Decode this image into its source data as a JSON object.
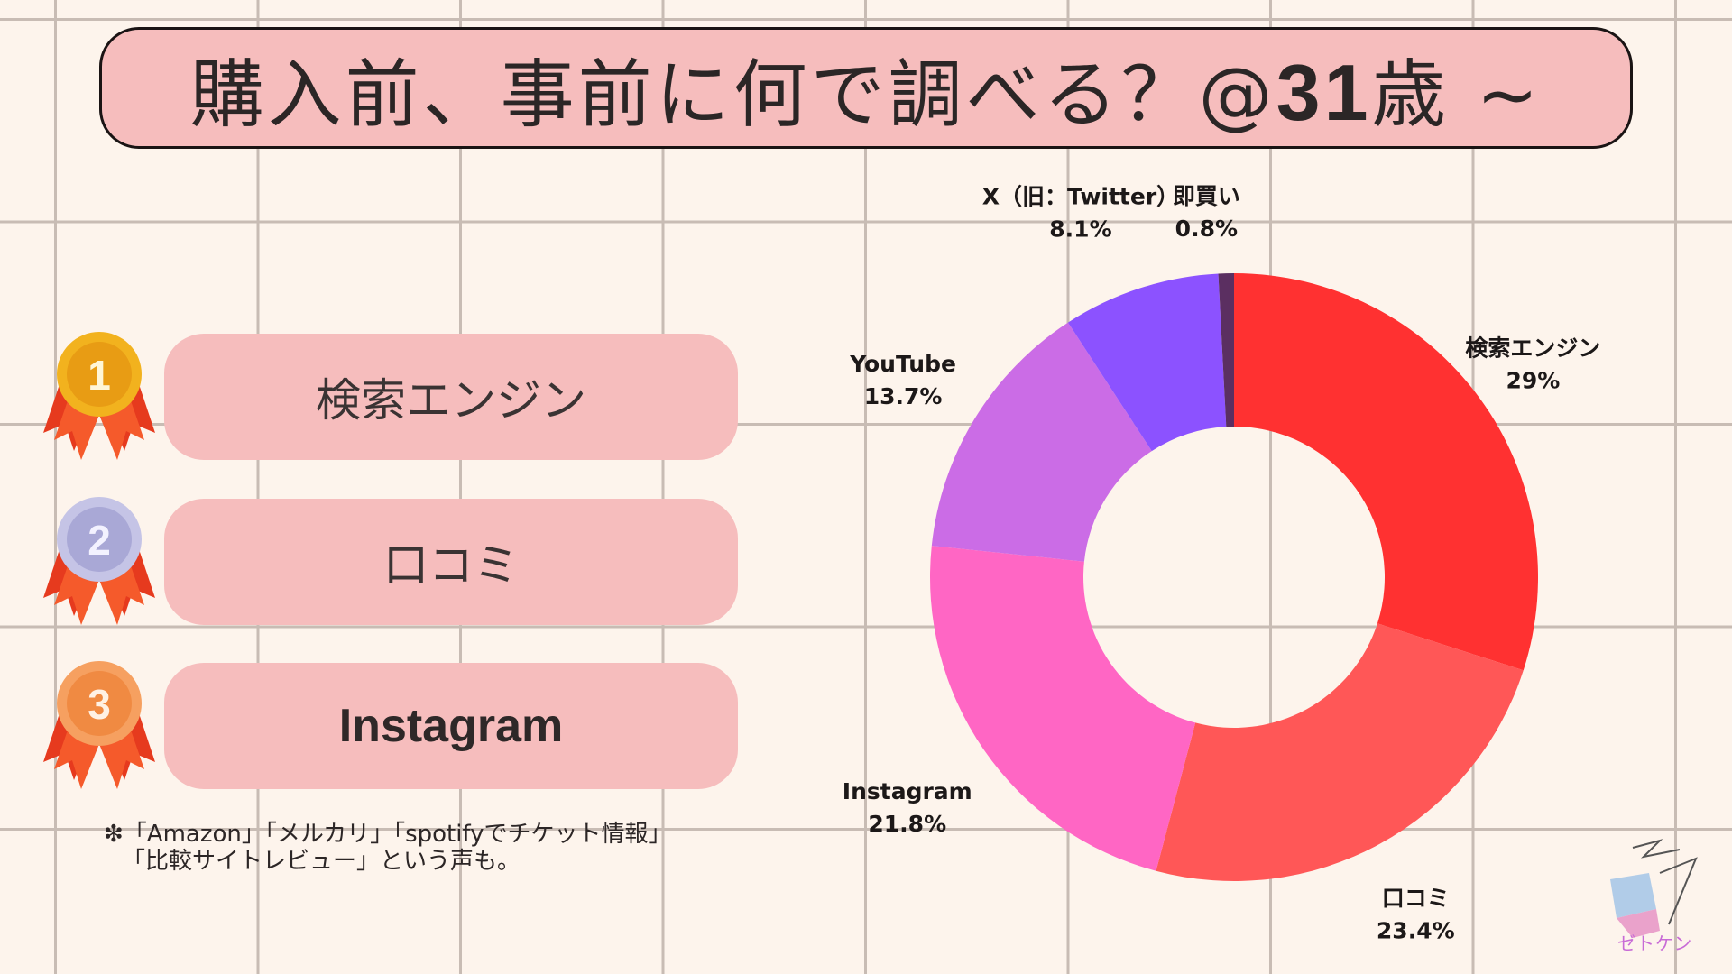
{
  "title": {
    "prefix": "購入前、事前に何で調べる？@",
    "num": "31",
    "suffix": "歳 ~"
  },
  "ranking": [
    {
      "rank": "1",
      "label": "検索エンジン",
      "medal_color": "#f2b21e"
    },
    {
      "rank": "2",
      "label": "口コミ",
      "medal_color": "#a9a8d6"
    },
    {
      "rank": "3",
      "label": "Instagram",
      "medal_color": "#f08a42"
    }
  ],
  "note": {
    "line1": "❇「Amazon」「メルカリ」「spotifyでチケット情報」",
    "line2": "「比較サイトレビュー」という声も。"
  },
  "chart_data": {
    "type": "pie",
    "categories": [
      "検索エンジン",
      "口コミ",
      "Instagram",
      "YouTube",
      "X（旧：Twitter）",
      "即買い"
    ],
    "values": [
      29,
      23.4,
      21.8,
      13.7,
      8.1,
      0.8
    ],
    "value_labels": [
      "29%",
      "23.4%",
      "21.8%",
      "13.7%",
      "8.1%",
      "0.8%"
    ],
    "colors": [
      "#ff3131",
      "#ff5757",
      "#ff66c4",
      "#cb6ce6",
      "#8c52ff",
      "#5b2f61",
      "#a34a77"
    ]
  },
  "logo": {
    "text": "ゼトケン"
  }
}
